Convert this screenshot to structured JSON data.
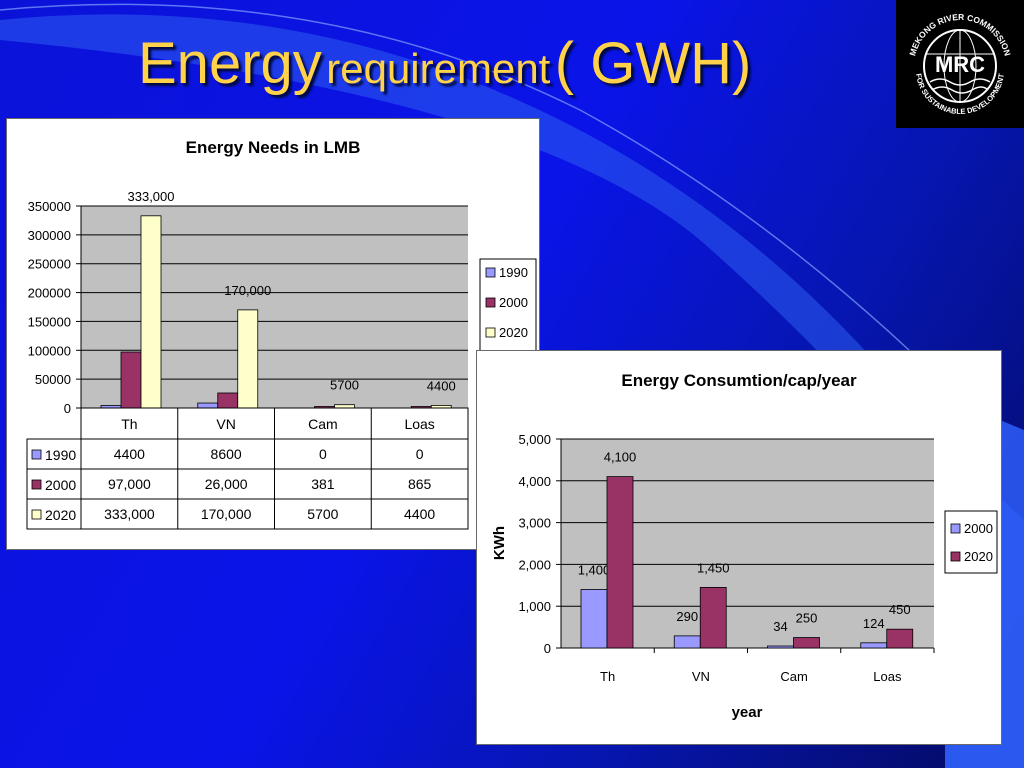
{
  "slide": {
    "title_word": "Energy",
    "title_rest": "requirement",
    "title_unit": "( GWH)",
    "logo": {
      "icon": "globe-icon",
      "text": "MRC",
      "ring_top": "MEKONG RIVER COMMISSION",
      "ring_bottom": "FOR SUSTAINABLE DEVELOPMENT"
    }
  },
  "colors": {
    "s1990": "#9999ff",
    "s2000": "#993366",
    "s2020": "#ffffcc",
    "plot_bg": "#c0c0c0",
    "title": "#ffd24a"
  },
  "chart_data": [
    {
      "type": "bar",
      "title": "Energy Needs in LMB",
      "xlabel": "",
      "ylabel": "",
      "categories": [
        "Th",
        "VN",
        "Cam",
        "Loas"
      ],
      "ylim": [
        0,
        350000
      ],
      "yticks": [
        "0",
        "50000",
        "100000",
        "150000",
        "200000",
        "250000",
        "300000",
        "350000"
      ],
      "grid": true,
      "legend_position": "right",
      "series": [
        {
          "name": "1990",
          "values": [
            4400,
            8600,
            0,
            0
          ]
        },
        {
          "name": "2000",
          "values": [
            97000,
            26000,
            381,
            865
          ]
        },
        {
          "name": "2020",
          "values": [
            333000,
            170000,
            5700,
            4400
          ]
        }
      ],
      "data_labels": [
        {
          "series": 2,
          "index": 0,
          "text": "333,000"
        },
        {
          "series": 2,
          "index": 1,
          "text": "170,000"
        },
        {
          "series": 2,
          "index": 2,
          "text": "5700"
        },
        {
          "series": 2,
          "index": 3,
          "text": "4400"
        }
      ],
      "table": {
        "rows": [
          {
            "name": "1990",
            "cells": [
              "4400",
              "8600",
              "0",
              "0"
            ]
          },
          {
            "name": "2000",
            "cells": [
              "97,000",
              "26,000",
              "381",
              "865"
            ]
          },
          {
            "name": "2020",
            "cells": [
              "333,000",
              "170,000",
              "5700",
              "4400"
            ]
          }
        ]
      }
    },
    {
      "type": "bar",
      "title": "Energy Consumtion/cap/year",
      "xlabel": "year",
      "ylabel": "KWh",
      "categories": [
        "Th",
        "VN",
        "Cam",
        "Loas"
      ],
      "ylim": [
        0,
        5000
      ],
      "yticks": [
        "0",
        "1,000",
        "2,000",
        "3,000",
        "4,000",
        "5,000"
      ],
      "grid": true,
      "legend_position": "right",
      "series": [
        {
          "name": "2000",
          "values": [
            1400,
            290,
            34,
            124
          ]
        },
        {
          "name": "2020",
          "values": [
            4100,
            1450,
            250,
            450
          ]
        }
      ],
      "data_labels": [
        [
          "1,400",
          "290",
          "34",
          "124"
        ],
        [
          "4,100",
          "1,450",
          "250",
          "450"
        ]
      ]
    }
  ]
}
